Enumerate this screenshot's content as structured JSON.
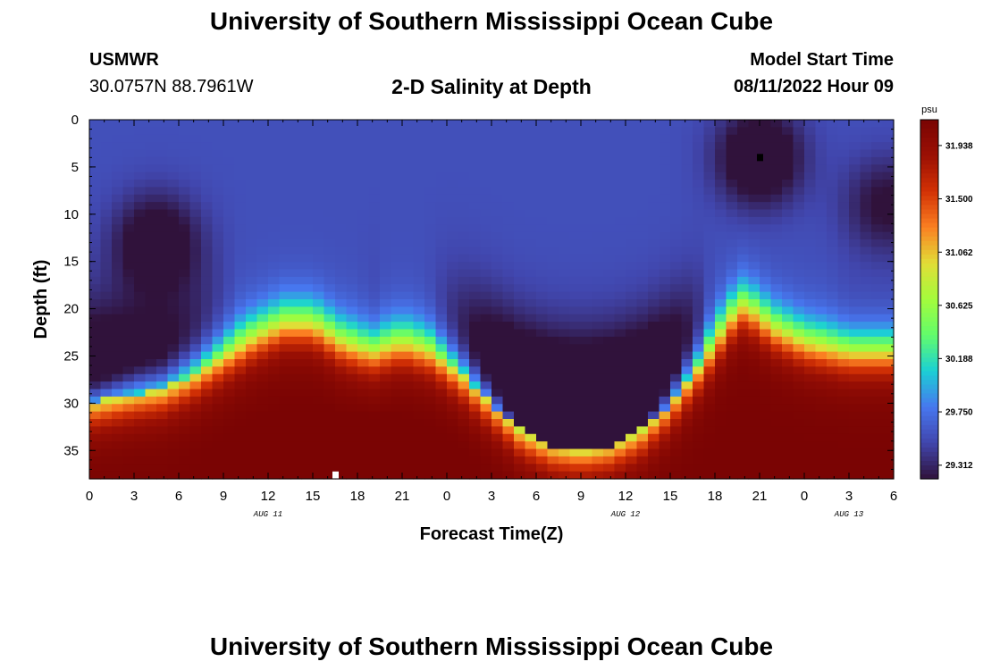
{
  "header": {
    "title": "University of Southern Mississippi Ocean Cube",
    "station": "USMWR",
    "coords": "30.0757N  88.7961W",
    "subtitle": "2-D Salinity at Depth",
    "model_label": "Model Start Time",
    "model_time": "08/11/2022 Hour 09"
  },
  "footer": {
    "title": "University of Southern Mississippi Ocean Cube"
  },
  "colors": {
    "colormap": [
      "#30123b",
      "#4146ad",
      "#4777ef",
      "#1bd0d5",
      "#62fc6b",
      "#a4fc3c",
      "#e1dd37",
      "#fb8022",
      "#d23105",
      "#9b1004",
      "#7a0403"
    ]
  },
  "chart_data": {
    "type": "heatmap",
    "title": "2-D Salinity at Depth",
    "xlabel": "Forecast Time(Z)",
    "ylabel": "Depth (ft)",
    "x_hours": [
      0,
      54
    ],
    "x_tick_labels": [
      "0",
      "3",
      "6",
      "9",
      "12",
      "15",
      "18",
      "21",
      "0",
      "3",
      "6",
      "9",
      "12",
      "15",
      "18",
      "21",
      "0",
      "3",
      "6"
    ],
    "date_labels": [
      {
        "label": "AUG 11",
        "hour": 12
      },
      {
        "label": "AUG 12",
        "hour": 36
      },
      {
        "label": "AUG 13",
        "hour": 51
      }
    ],
    "ylim": [
      0,
      38
    ],
    "y_ticks": [
      0,
      5,
      10,
      15,
      20,
      25,
      30,
      35
    ],
    "colorbar": {
      "unit": "psu",
      "range": [
        29.2,
        32.15
      ],
      "ticks": [
        "31.938",
        "31.500",
        "31.062",
        "30.625",
        "30.188",
        "29.750",
        "29.312"
      ]
    },
    "interface_depth_ft": [
      {
        "hour": 0,
        "depth": 30
      },
      {
        "hour": 3,
        "depth": 29
      },
      {
        "hour": 5,
        "depth": 28.5
      },
      {
        "hour": 7,
        "depth": 27
      },
      {
        "hour": 9,
        "depth": 25
      },
      {
        "hour": 11,
        "depth": 23
      },
      {
        "hour": 13,
        "depth": 21.5
      },
      {
        "hour": 15,
        "depth": 21.5
      },
      {
        "hour": 17,
        "depth": 23.5
      },
      {
        "hour": 19,
        "depth": 24.5
      },
      {
        "hour": 21,
        "depth": 23.5
      },
      {
        "hour": 23,
        "depth": 24.5
      },
      {
        "hour": 25,
        "depth": 27
      },
      {
        "hour": 27,
        "depth": 30
      },
      {
        "hour": 29,
        "depth": 33
      },
      {
        "hour": 31,
        "depth": 34.5
      },
      {
        "hour": 33,
        "depth": 35
      },
      {
        "hour": 35,
        "depth": 34.5
      },
      {
        "hour": 37,
        "depth": 33
      },
      {
        "hour": 39,
        "depth": 30
      },
      {
        "hour": 41,
        "depth": 26
      },
      {
        "hour": 43,
        "depth": 21
      },
      {
        "hour": 44,
        "depth": 19.5
      },
      {
        "hour": 46,
        "depth": 22
      },
      {
        "hour": 48,
        "depth": 23.5
      },
      {
        "hour": 51,
        "depth": 24.5
      },
      {
        "hour": 54,
        "depth": 24.5
      }
    ],
    "fresh_cores": [
      {
        "hour": 4.5,
        "depth": 13,
        "strength": 0.85
      },
      {
        "hour": 45,
        "depth": 4,
        "strength": 1.0
      },
      {
        "hour": 53.5,
        "depth": 9,
        "strength": 0.6
      }
    ],
    "salt_core": {
      "hour": 17.5,
      "depth": 37,
      "strength": 1.0
    },
    "markers": [
      {
        "hour": 45,
        "depth": 4,
        "color": "#000000"
      },
      {
        "hour": 16.5,
        "depth": 37.6,
        "color": "#ffffff"
      }
    ]
  }
}
